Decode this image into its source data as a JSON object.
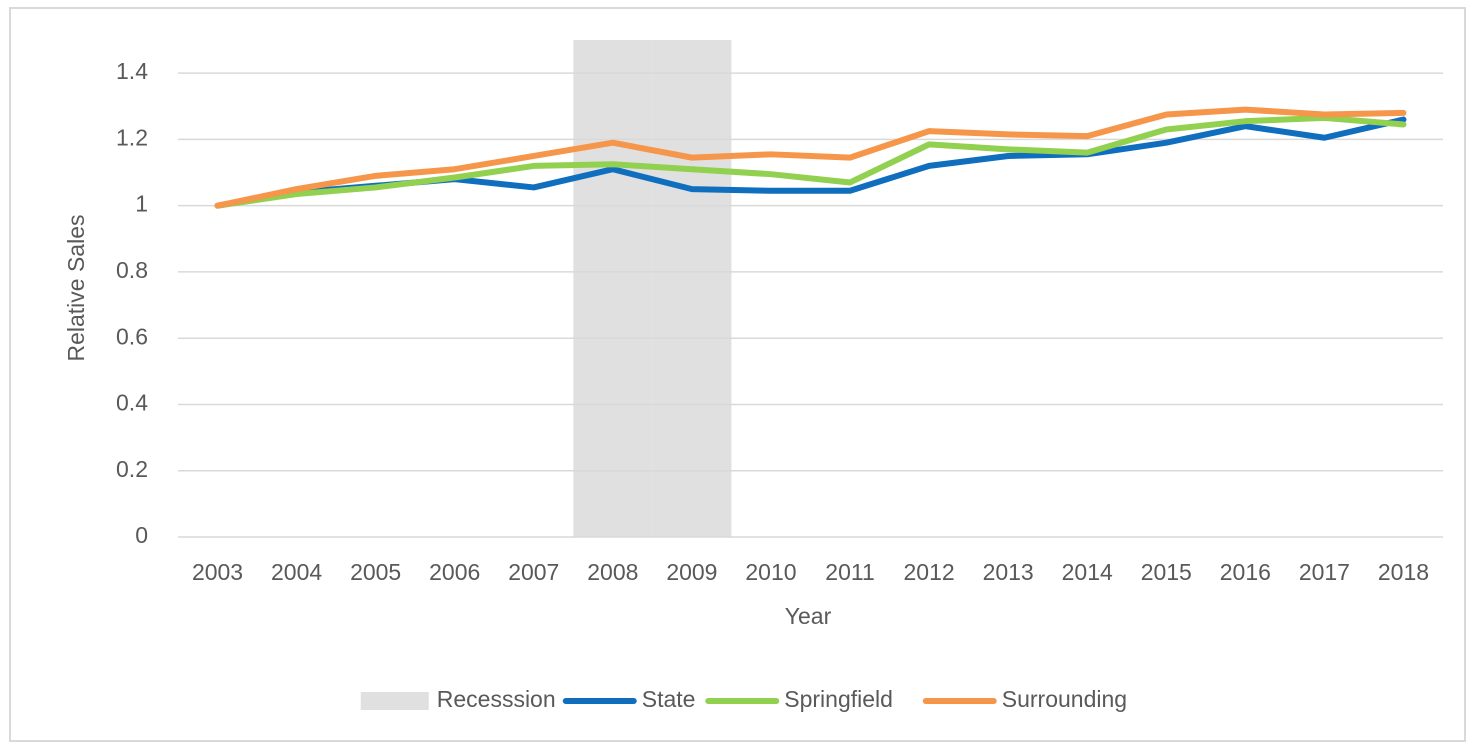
{
  "chart_data": {
    "type": "line",
    "x_label": "Year",
    "y_label": "Relative Sales",
    "categories": [
      "2003",
      "2004",
      "2005",
      "2006",
      "2007",
      "2008",
      "2009",
      "2010",
      "2011",
      "2012",
      "2013",
      "2014",
      "2015",
      "2016",
      "2017",
      "2018"
    ],
    "ylim": [
      0,
      1.5
    ],
    "yticks": [
      0,
      0.2,
      0.4,
      0.6,
      0.8,
      1,
      1.2,
      1.4
    ],
    "grid": true,
    "legend": "bottom",
    "series": [
      {
        "name": "Recesssion",
        "type": "bar",
        "color": "#e0e0e0",
        "values": [
          null,
          null,
          null,
          null,
          null,
          1.5,
          1.5,
          null,
          null,
          null,
          null,
          null,
          null,
          null,
          null,
          null
        ]
      },
      {
        "name": "State",
        "type": "line",
        "color": "#0f6fbe",
        "values": [
          1.0,
          1.04,
          1.06,
          1.08,
          1.055,
          1.11,
          1.05,
          1.045,
          1.045,
          1.12,
          1.15,
          1.155,
          1.19,
          1.24,
          1.205,
          1.26
        ]
      },
      {
        "name": "Springfield",
        "type": "line",
        "color": "#92d050",
        "values": [
          1.0,
          1.035,
          1.055,
          1.085,
          1.12,
          1.125,
          1.11,
          1.095,
          1.07,
          1.185,
          1.17,
          1.16,
          1.23,
          1.255,
          1.265,
          1.245
        ]
      },
      {
        "name": "Surrounding",
        "type": "line",
        "color": "#f5964a",
        "values": [
          1.0,
          1.05,
          1.09,
          1.11,
          1.15,
          1.19,
          1.145,
          1.155,
          1.145,
          1.225,
          1.215,
          1.21,
          1.275,
          1.29,
          1.275,
          1.28
        ]
      }
    ]
  }
}
